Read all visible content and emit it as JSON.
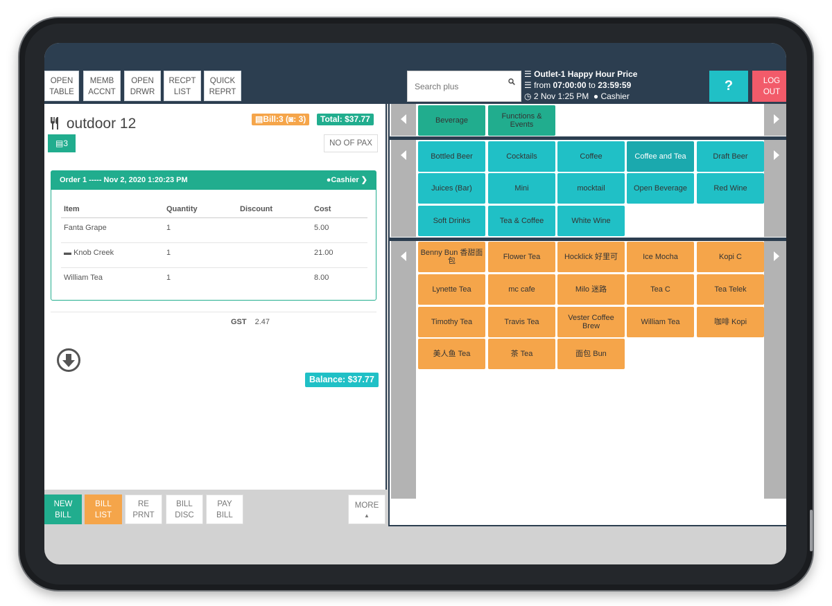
{
  "top_buttons": [
    {
      "line1": "OPEN",
      "line2": "TABLE"
    },
    {
      "line1": "MEMB",
      "line2": "ACCNT"
    },
    {
      "line1": "OPEN",
      "line2": "DRWR"
    },
    {
      "line1": "RECPT",
      "line2": "LIST"
    },
    {
      "line1": "QUICK",
      "line2": "REPRT"
    }
  ],
  "search": {
    "placeholder": "Search plus"
  },
  "outlet": {
    "title": "Outlet-1 Happy Hour Price",
    "from_label": "from",
    "from_time": "07:00:00",
    "to_label": "to",
    "to_time": "23:59:59",
    "datetime": "2 Nov 1:25 PM",
    "user": "Cashier"
  },
  "help_label": "?",
  "logout": {
    "line1": "LOG",
    "line2": "OUT"
  },
  "table": {
    "name": "outdoor 12",
    "bill_badge": "Bill:3 (",
    "bill_badge_count": ": 3)",
    "total_badge": "Total: $37.77",
    "ticket_count": "3",
    "pax_label": "NO OF PAX"
  },
  "order": {
    "header": "Order 1 ----- Nov 2, 2020 1:20:23 PM",
    "cashier": "Cashier",
    "columns": [
      "Item",
      "Quantity",
      "Discount",
      "Cost"
    ],
    "rows": [
      {
        "item": "Fanta Grape",
        "qty": "1",
        "discount": "",
        "cost": "5.00"
      },
      {
        "item": "Knob Creek",
        "qty": "1",
        "discount": "",
        "cost": "21.00"
      },
      {
        "item": "William Tea",
        "qty": "1",
        "discount": "",
        "cost": "8.00"
      }
    ]
  },
  "gst": {
    "label": "GST",
    "value": "2.47"
  },
  "balance": "Balance: $37.77",
  "bottom_buttons": [
    {
      "line1": "NEW",
      "line2": "BILL",
      "style": "green"
    },
    {
      "line1": "BILL",
      "line2": "LIST",
      "style": "orange"
    },
    {
      "line1": "RE",
      "line2": "PRNT",
      "style": "plain"
    },
    {
      "line1": "BILL",
      "line2": "DISC",
      "style": "plain"
    },
    {
      "line1": "PAY",
      "line2": "BILL",
      "style": "plain"
    }
  ],
  "more_label": "MORE",
  "categories": [
    "Beverage",
    "Functions & Events"
  ],
  "subcategories": [
    "Bottled Beer",
    "Cocktails",
    "Coffee",
    "Coffee and Tea",
    "Draft Beer",
    "Juices (Bar)",
    "Mini",
    "mocktail",
    "Open Beverage",
    "Red Wine",
    "Soft Drinks",
    "Tea & Coffee",
    "White Wine"
  ],
  "active_subcategory": "Coffee and Tea",
  "items": [
    "Benny Bun 香甜面包",
    "Flower Tea",
    "Hocklick 好里可",
    "Ice Mocha",
    "Kopi C",
    "Lynette Tea",
    "mc cafe",
    "Milo 迷路",
    "Tea C",
    "Tea Telek",
    "Timothy Tea",
    "Travis Tea",
    "Vester Coffee Brew",
    "William Tea",
    "咖啡 Kopi",
    "美人鱼 Tea",
    "茶 Tea",
    "面包 Bun"
  ],
  "colors": {
    "topbar": "#2c3e50",
    "green": "#21ad8e",
    "teal": "#20c0c6",
    "orange": "#f5a54a",
    "red": "#f25b6a"
  }
}
